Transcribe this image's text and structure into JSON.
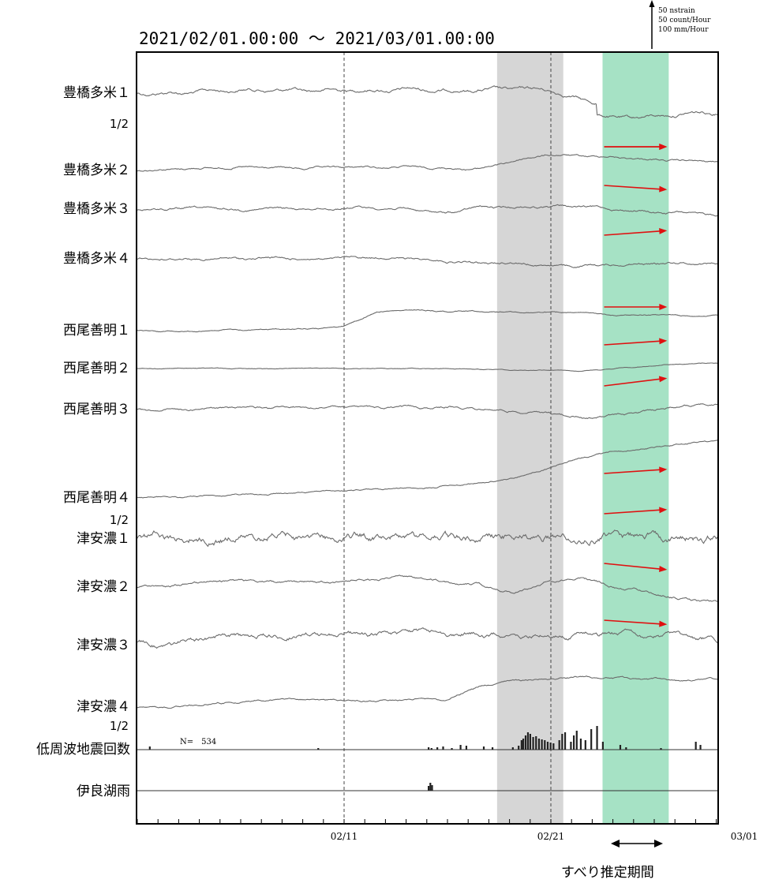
{
  "chart_data": {
    "type": "line",
    "title": "2021/02/01.00:00 ～ 2021/03/01.00:00",
    "scale_legend": [
      "50 nstrain",
      "50 count/Hour",
      "100 mm/Hour"
    ],
    "x_ticks": [
      "02/11",
      "02/21",
      "03/01"
    ],
    "x_range": [
      "02/01",
      "03/01"
    ],
    "reference_lines": [
      "02/11",
      "02/21"
    ],
    "gray_band": {
      "from": "02/18.4",
      "to": "02/21.6"
    },
    "green_band": {
      "from": "02/23.5",
      "to": "02/26.7"
    },
    "green_band_color": "#a6e2c5",
    "slip_period_label": "すべり推定期間",
    "eq_count_label": "N=　534",
    "series": [
      {
        "name": "豊橋多米１",
        "scale_note": "1/2",
        "trend": [
          0,
          0,
          -2,
          -4,
          -4,
          -3,
          -4,
          -4,
          -5,
          -3,
          -4,
          -5,
          -4,
          8,
          18,
          16,
          12,
          10
        ],
        "noise": 2.5,
        "steps": [
          [
            0.79,
            14
          ]
        ],
        "arrow": -0.5
      },
      {
        "name": "豊橋多米２",
        "trend": [
          0,
          -2,
          -3,
          -4,
          -3,
          -2,
          -4,
          -4,
          -4,
          -3,
          -2,
          -12,
          -20,
          -18,
          -17,
          -14,
          -12,
          -11
        ],
        "noise": 1.5,
        "arrow": 0
      },
      {
        "name": "豊橋多米３",
        "trend": [
          0,
          0,
          -1,
          1,
          -1,
          0,
          -2,
          -2,
          0,
          6,
          -2,
          -2,
          -4,
          -3,
          0,
          4,
          5,
          8
        ],
        "noise": 1.8,
        "arrow": 1.2
      },
      {
        "name": "豊橋多米４",
        "trend": [
          0,
          0,
          0,
          0,
          -1,
          0,
          0,
          -2,
          0,
          2,
          6,
          5,
          8,
          10,
          7,
          6,
          5,
          6
        ],
        "noise": 1.8,
        "arrow": -1.3
      },
      {
        "name": "西尾善明１",
        "trend": [
          0,
          0,
          0,
          -1,
          -2,
          -3,
          -5,
          -24,
          -26,
          -25,
          -25,
          -24,
          -23,
          -22,
          -20,
          -20,
          -19,
          -19
        ],
        "noise": 1,
        "arrow": 0
      },
      {
        "name": "西尾善明２",
        "trend": [
          0,
          0,
          0,
          0,
          0,
          0,
          0,
          0,
          0,
          0,
          1,
          2,
          2,
          3,
          0,
          -3,
          -6,
          -7
        ],
        "noise": 0.6,
        "arrow": -1.2
      },
      {
        "name": "西尾善明３",
        "trend": [
          0,
          0,
          -2,
          -2,
          -3,
          -2,
          -3,
          -2,
          -2,
          -3,
          -1,
          2,
          5,
          10,
          8,
          2,
          -5,
          -8
        ],
        "noise": 1.8,
        "arrow": -2.2
      },
      {
        "name": "西尾善明４",
        "scale_note": "1/2",
        "trend": [
          0,
          0,
          -1,
          -2,
          -4,
          -6,
          -8,
          -10,
          -11,
          -14,
          -18,
          -24,
          -36,
          -50,
          -58,
          -62,
          -68,
          -72
        ],
        "noise": 1.2,
        "arrow": -1.2
      },
      {
        "name": "津安濃１",
        "trend": [
          0,
          0,
          0,
          0,
          0,
          0,
          0,
          0,
          0,
          0,
          0,
          0,
          0,
          0,
          0,
          0,
          0,
          0
        ],
        "noise": 6.5,
        "arrow": -1.2
      },
      {
        "name": "津安濃２",
        "trend": [
          0,
          -2,
          -6,
          -8,
          -5,
          -6,
          -8,
          -10,
          -12,
          -8,
          -4,
          8,
          -8,
          -12,
          0,
          8,
          16,
          20
        ],
        "noise": 2,
        "arrow": 1.8
      },
      {
        "name": "津安濃３",
        "trend": [
          0,
          0,
          -6,
          -10,
          -12,
          -12,
          -14,
          -12,
          -14,
          -14,
          -12,
          -12,
          -10,
          -12,
          -14,
          -8,
          -6,
          -2
        ],
        "noise": 4,
        "arrow": 1.2
      },
      {
        "name": "津安濃４",
        "scale_note": "1/2",
        "trend": [
          0,
          0,
          -4,
          -8,
          -10,
          -10,
          -8,
          -8,
          -10,
          -10,
          -28,
          -34,
          -36,
          -40,
          -38,
          -36,
          -34,
          -36
        ],
        "noise": 1.5,
        "arrow": 0
      },
      {
        "name": "低周波地震回数",
        "kind": "bars",
        "bars": [
          [
            0.02,
            4
          ],
          [
            0.31,
            2
          ],
          [
            0.5,
            3
          ],
          [
            0.505,
            2
          ],
          [
            0.515,
            3
          ],
          [
            0.525,
            4
          ],
          [
            0.54,
            2
          ],
          [
            0.555,
            6
          ],
          [
            0.565,
            5
          ],
          [
            0.595,
            4
          ],
          [
            0.61,
            3
          ],
          [
            0.645,
            3
          ],
          [
            0.655,
            5
          ],
          [
            0.66,
            12
          ],
          [
            0.663,
            14
          ],
          [
            0.667,
            18
          ],
          [
            0.671,
            22
          ],
          [
            0.675,
            20
          ],
          [
            0.68,
            16
          ],
          [
            0.685,
            17
          ],
          [
            0.69,
            14
          ],
          [
            0.695,
            13
          ],
          [
            0.7,
            12
          ],
          [
            0.705,
            10
          ],
          [
            0.71,
            9
          ],
          [
            0.715,
            8
          ],
          [
            0.725,
            12
          ],
          [
            0.73,
            20
          ],
          [
            0.735,
            22
          ],
          [
            0.745,
            10
          ],
          [
            0.75,
            18
          ],
          [
            0.755,
            24
          ],
          [
            0.762,
            14
          ],
          [
            0.77,
            12
          ],
          [
            0.78,
            26
          ],
          [
            0.79,
            30
          ],
          [
            0.8,
            10
          ],
          [
            0.83,
            6
          ],
          [
            0.84,
            3
          ],
          [
            0.9,
            2
          ],
          [
            0.96,
            10
          ],
          [
            0.968,
            6
          ]
        ]
      },
      {
        "name": "伊良湖雨",
        "kind": "bars",
        "bars": [
          [
            0.5,
            6
          ],
          [
            0.503,
            10
          ],
          [
            0.506,
            7
          ]
        ]
      }
    ]
  }
}
